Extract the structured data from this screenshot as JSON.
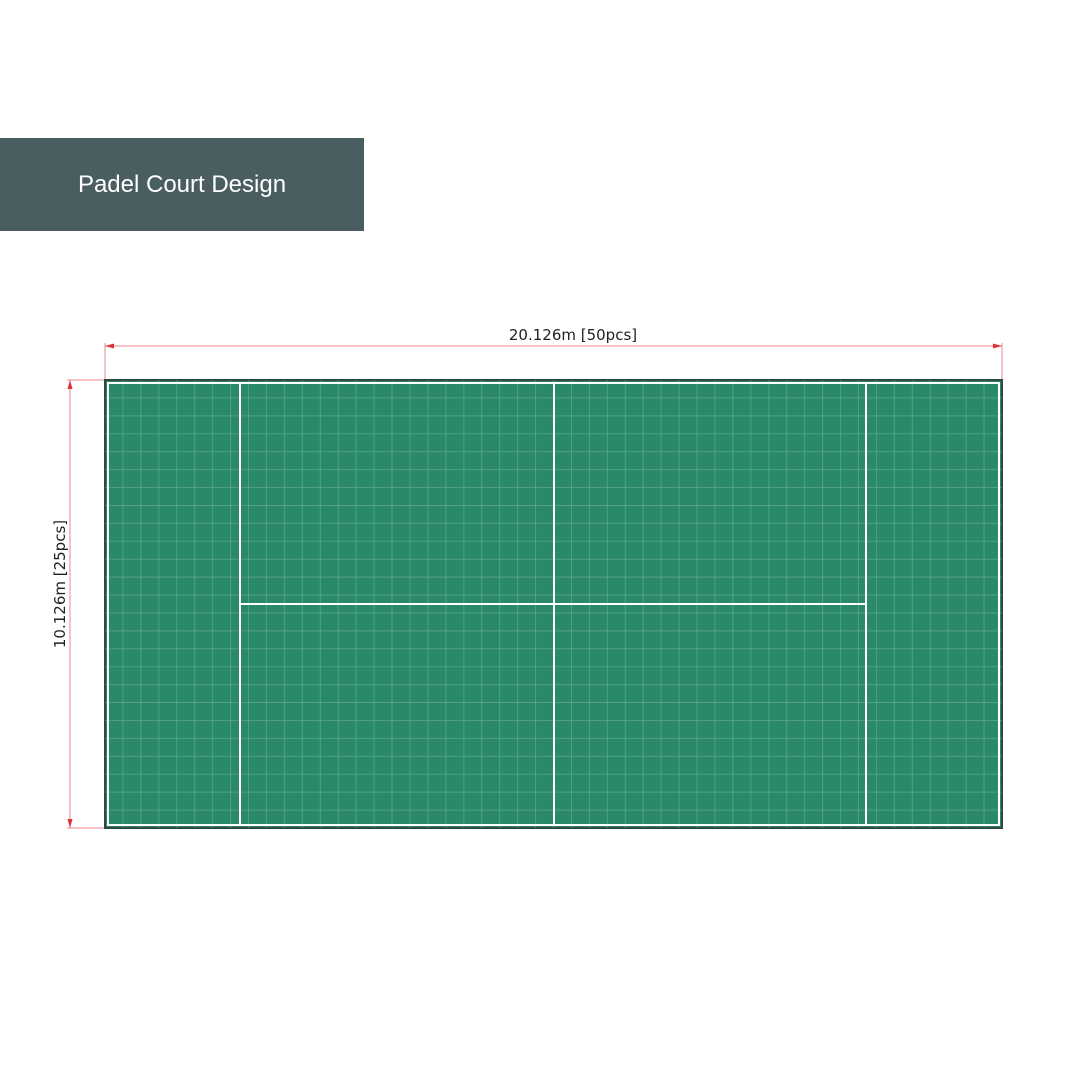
{
  "title": "Padel Court Design",
  "width_label": "20.126m [50pcs]",
  "height_label": "10.126m [25pcs]",
  "tiles": {
    "columns": 50,
    "rows": 25
  },
  "colors": {
    "banner": "#4a5e62",
    "court": "#2a8a68",
    "lines": "#ffffff",
    "dimension": "#e0303a"
  }
}
